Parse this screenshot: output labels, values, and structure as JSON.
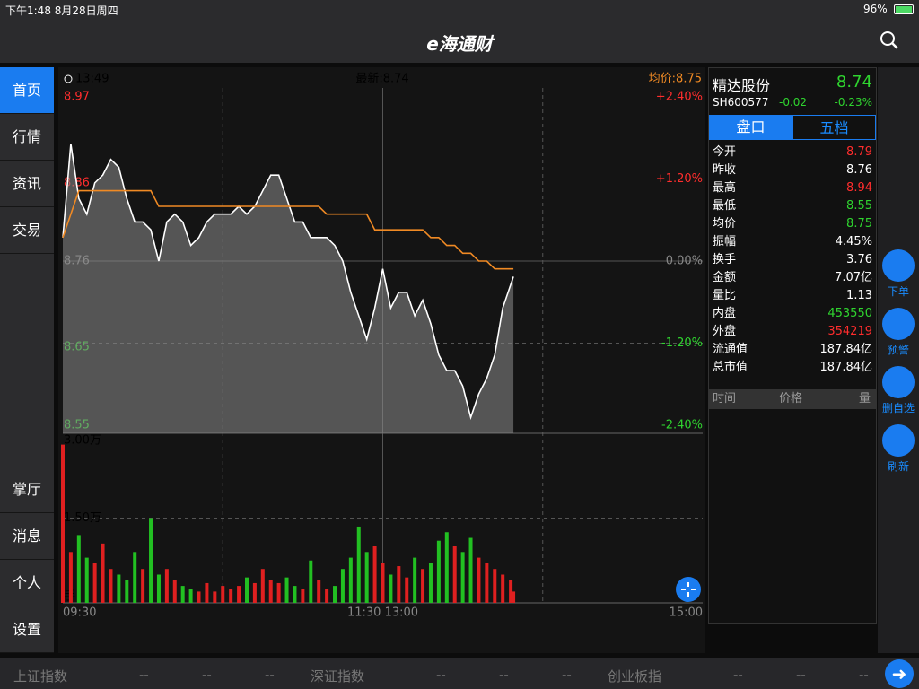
{
  "status_bar": {
    "time": "下午1:48  8月28日周四",
    "battery": "96%"
  },
  "header": {
    "logo": "e海通财"
  },
  "sidebar": {
    "top": [
      "首页",
      "行情",
      "资讯",
      "交易"
    ],
    "bottom": [
      "掌厅",
      "消息",
      "个人",
      "设置"
    ]
  },
  "chart_data": {
    "type": "line",
    "time": "13:49",
    "latest": "最新:8.74",
    "average": "均价:8.75",
    "x": [
      0,
      3,
      6,
      9,
      12,
      15,
      18,
      21,
      24,
      27,
      30,
      33,
      36,
      39,
      42,
      45,
      48,
      51,
      54,
      57,
      60,
      63,
      66,
      69,
      72,
      75,
      78,
      81,
      84,
      87,
      90,
      93,
      96,
      99,
      102,
      105,
      108,
      111,
      114,
      117,
      120,
      123,
      126,
      129,
      132,
      135,
      138,
      141,
      144,
      147,
      150,
      153,
      156,
      159,
      162,
      165,
      168,
      169
    ],
    "xlim": [
      0,
      240
    ],
    "xticks": [
      {
        "value": 0,
        "label": "09:30"
      },
      {
        "value": 120,
        "label": "11:30 13:00"
      },
      {
        "value": 240,
        "label": "15:00"
      }
    ],
    "ylim": [
      8.55,
      8.97
    ],
    "yticks": [
      8.97,
      8.86,
      8.76,
      8.65,
      8.55
    ],
    "y2lim": [
      -2.4,
      2.4
    ],
    "y2ticks": [
      {
        "value": 2.4,
        "label": "+2.40%"
      },
      {
        "value": 1.2,
        "label": "+1.20%"
      },
      {
        "value": 0,
        "label": "0.00%"
      },
      {
        "value": -1.2,
        "label": "-1.20%"
      },
      {
        "value": -2.4,
        "label": "-2.40%"
      }
    ],
    "series": [
      {
        "color": "#ffffff",
        "values": [
          8.79,
          8.91,
          8.84,
          8.82,
          8.86,
          8.87,
          8.89,
          8.88,
          8.84,
          8.81,
          8.81,
          8.8,
          8.76,
          8.81,
          8.82,
          8.81,
          8.78,
          8.79,
          8.81,
          8.82,
          8.82,
          8.82,
          8.83,
          8.82,
          8.83,
          8.85,
          8.87,
          8.87,
          8.84,
          8.81,
          8.81,
          8.79,
          8.79,
          8.79,
          8.78,
          8.76,
          8.72,
          8.69,
          8.66,
          8.7,
          8.75,
          8.7,
          8.72,
          8.72,
          8.69,
          8.71,
          8.68,
          8.64,
          8.62,
          8.62,
          8.6,
          8.56,
          8.59,
          8.61,
          8.64,
          8.7,
          8.73,
          8.74
        ]
      },
      {
        "color": "#f08a24",
        "values": [
          8.79,
          8.82,
          8.85,
          8.85,
          8.85,
          8.85,
          8.85,
          8.85,
          8.85,
          8.85,
          8.85,
          8.85,
          8.83,
          8.83,
          8.83,
          8.83,
          8.83,
          8.83,
          8.83,
          8.83,
          8.83,
          8.83,
          8.83,
          8.83,
          8.83,
          8.83,
          8.83,
          8.83,
          8.83,
          8.83,
          8.83,
          8.83,
          8.83,
          8.82,
          8.82,
          8.82,
          8.82,
          8.82,
          8.82,
          8.8,
          8.8,
          8.8,
          8.8,
          8.8,
          8.8,
          8.8,
          8.79,
          8.79,
          8.78,
          8.78,
          8.77,
          8.77,
          8.76,
          8.76,
          8.75,
          8.75,
          8.75,
          8.75
        ]
      }
    ],
    "volume": {
      "values": [
        28000,
        9000,
        12000,
        8000,
        7000,
        10500,
        6000,
        5000,
        4000,
        9000,
        6000,
        15000,
        5000,
        6000,
        4000,
        3000,
        2500,
        2000,
        3500,
        2000,
        3000,
        2500,
        3000,
        4500,
        3500,
        6000,
        4000,
        3500,
        4500,
        3000,
        2500,
        7500,
        4000,
        2500,
        3000,
        6000,
        8000,
        13500,
        9000,
        10000,
        7000,
        5000,
        6500,
        4500,
        8000,
        6000,
        7000,
        11000,
        12500,
        10000,
        9000,
        11500,
        8000,
        7000,
        6000,
        5000,
        4000,
        2000
      ],
      "ylim": [
        0,
        30000
      ],
      "yticks": [
        {
          "value": 30000,
          "label": "3.00万"
        },
        {
          "value": 15000,
          "label": "1.50万"
        }
      ],
      "unit": "手"
    }
  },
  "quote": {
    "name": "精达股份",
    "price": "8.74",
    "code": "SH600577",
    "change": "-0.02",
    "change_pct": "-0.23%",
    "tabs": [
      "盘口",
      "五档"
    ],
    "stats": [
      {
        "label": "今开",
        "value": "8.79",
        "color": "#ff2d2d"
      },
      {
        "label": "昨收",
        "value": "8.76",
        "color": "#ffffff"
      },
      {
        "label": "最高",
        "value": "8.94",
        "color": "#ff2d2d"
      },
      {
        "label": "最低",
        "value": "8.55",
        "color": "#2fd42f"
      },
      {
        "label": "均价",
        "value": "8.75",
        "color": "#2fd42f"
      },
      {
        "label": "振幅",
        "value": "4.45%",
        "color": "#ffffff"
      },
      {
        "label": "换手",
        "value": "3.76",
        "color": "#ffffff"
      },
      {
        "label": "金额",
        "value": "7.07亿",
        "color": "#ffffff"
      },
      {
        "label": "量比",
        "value": "1.13",
        "color": "#ffffff"
      },
      {
        "label": "内盘",
        "value": "453550",
        "color": "#2fd42f"
      },
      {
        "label": "外盘",
        "value": "354219",
        "color": "#ff2d2d"
      },
      {
        "label": "流通值",
        "value": "187.84亿",
        "color": "#ffffff"
      },
      {
        "label": "总市值",
        "value": "187.84亿",
        "color": "#ffffff"
      }
    ],
    "ticks_header": [
      "时间",
      "价格",
      "量"
    ]
  },
  "actions": [
    "下单",
    "预警",
    "删自选",
    "刷新"
  ],
  "index_bar": [
    {
      "name": "上证指数",
      "values": [
        "--",
        "--",
        "--"
      ]
    },
    {
      "name": "深证指数",
      "values": [
        "--",
        "--",
        "--"
      ]
    },
    {
      "name": "创业板指",
      "values": [
        "--",
        "--",
        "--"
      ]
    }
  ]
}
